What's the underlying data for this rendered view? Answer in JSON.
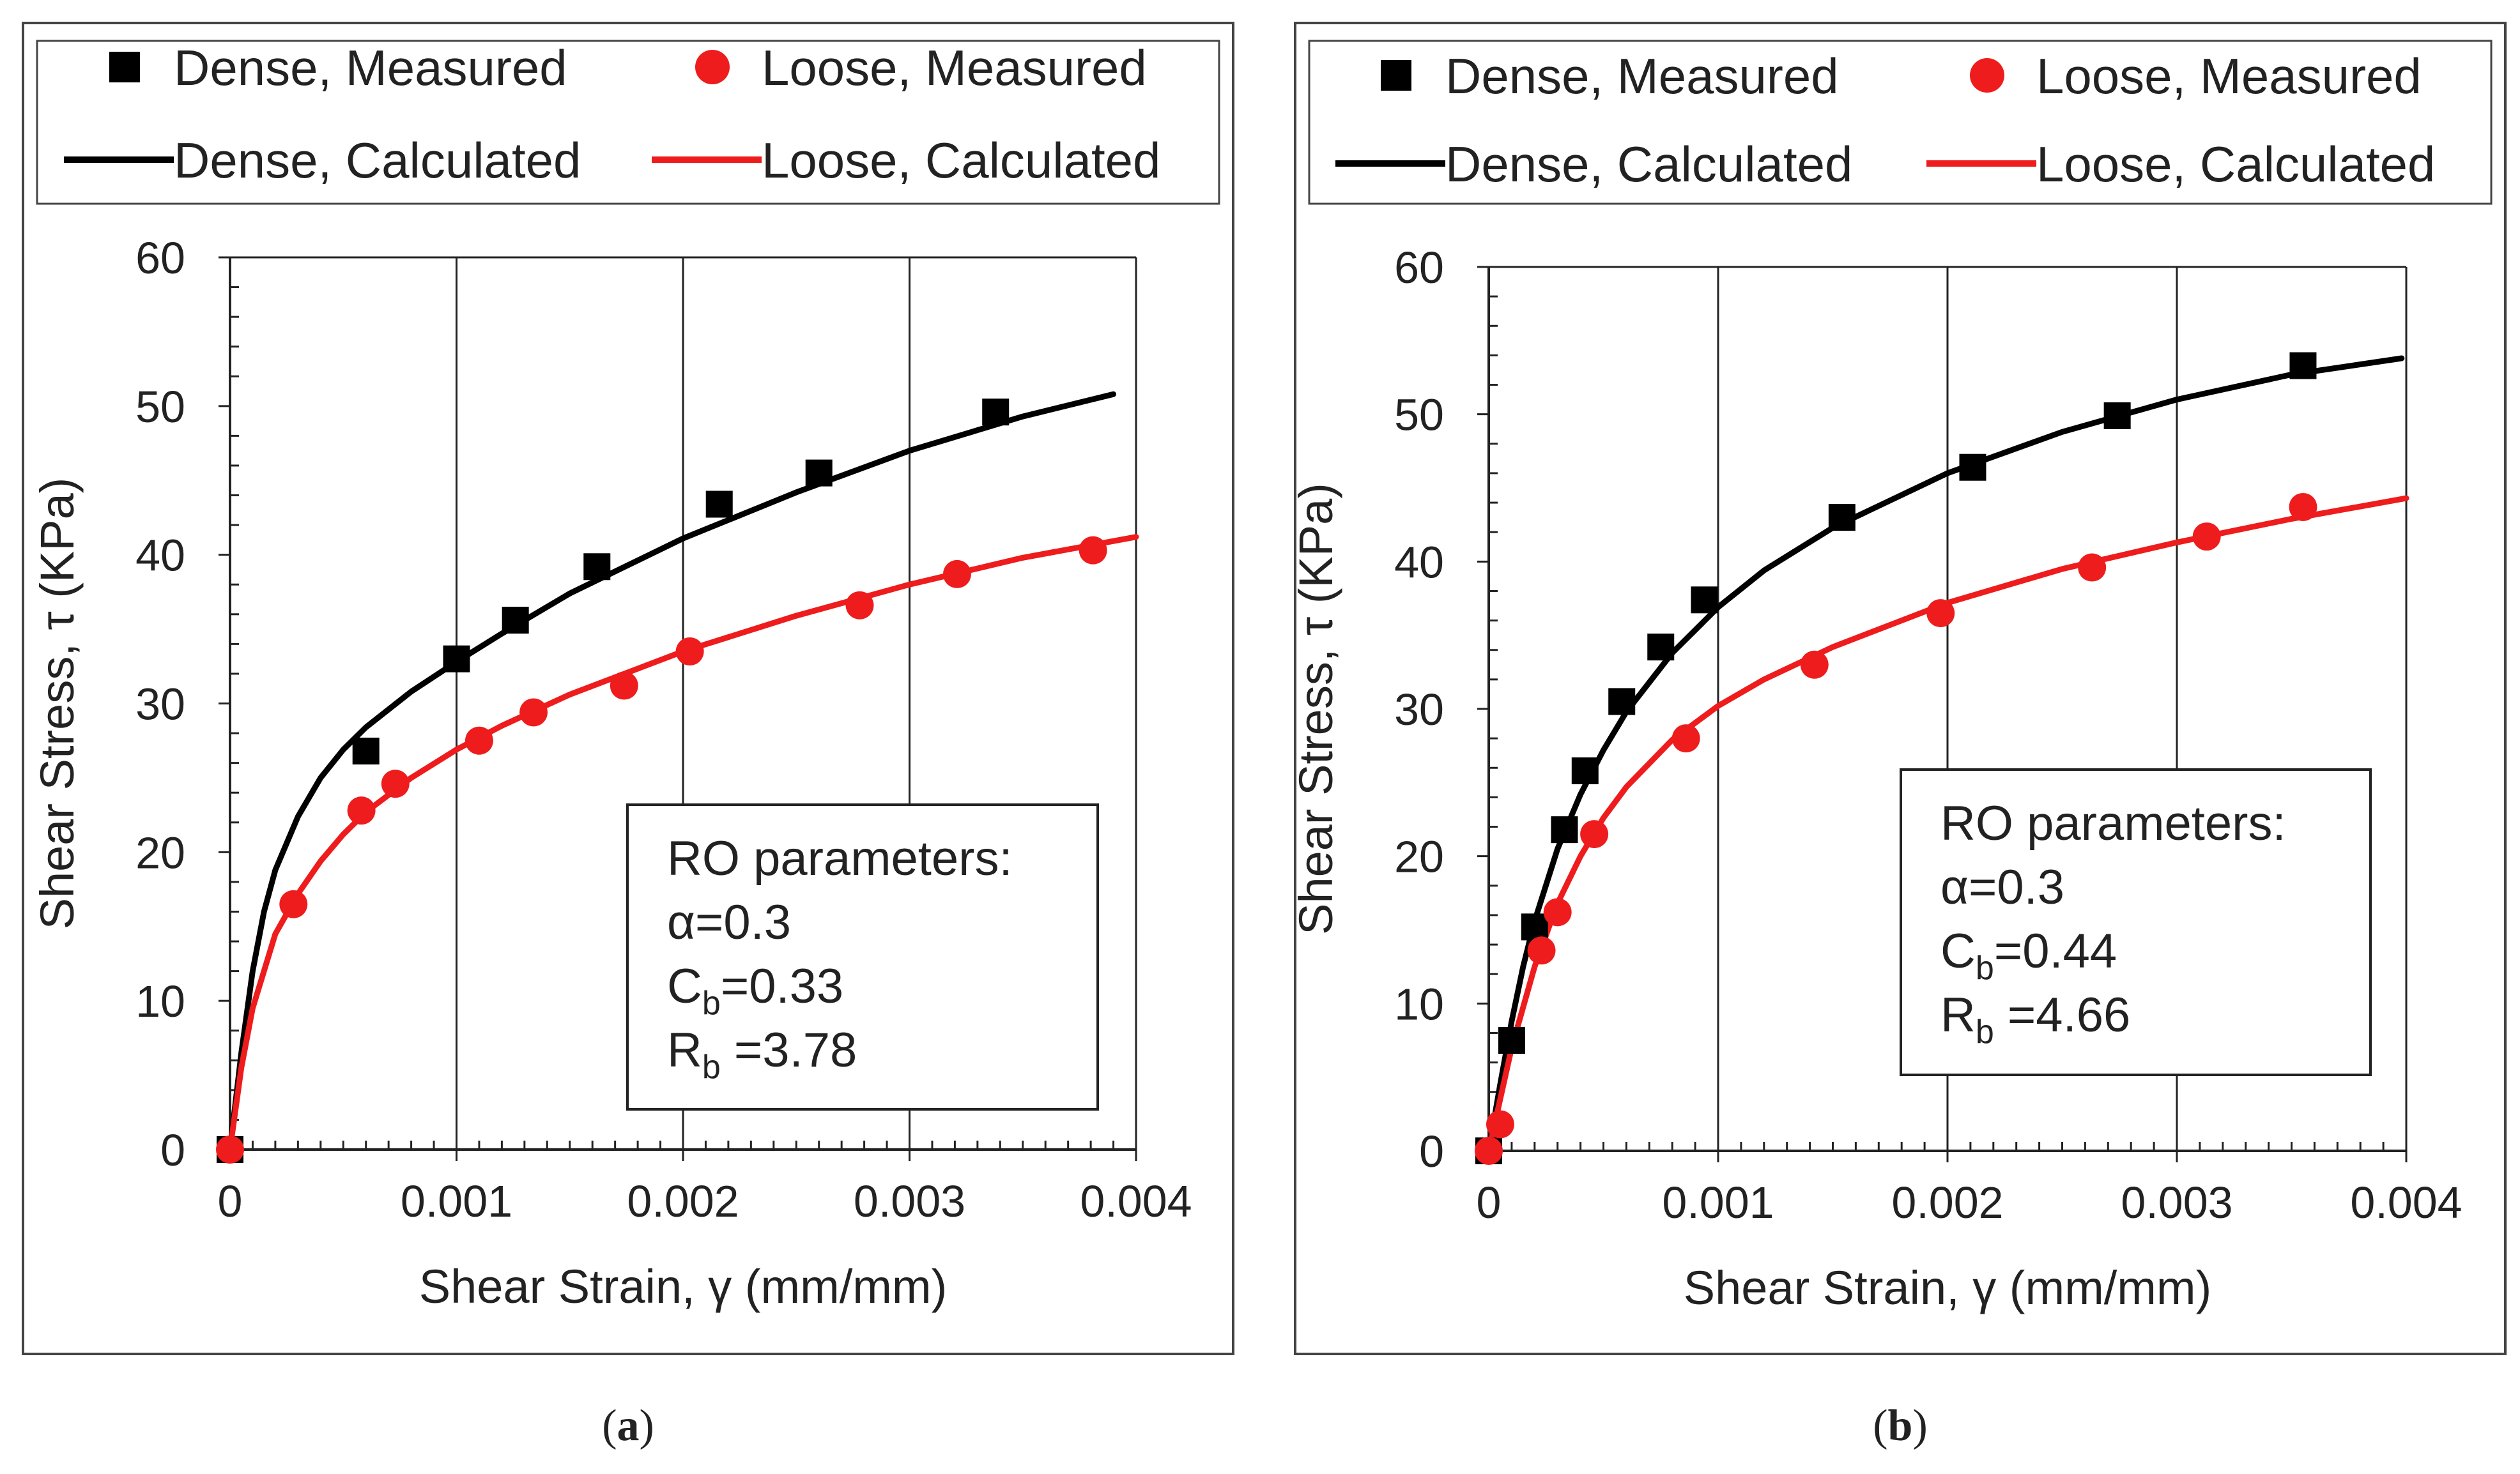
{
  "chart_data": [
    {
      "type": "line",
      "panel_label": "(a)",
      "xlabel": "Shear Strain, γ (mm/mm)",
      "ylabel": "Shear Stress, τ (KPa)",
      "xlim": [
        0,
        0.004
      ],
      "ylim": [
        0,
        60
      ],
      "xticks": [
        "0",
        "0.001",
        "0.002",
        "0.003",
        "0.004"
      ],
      "yticks": [
        "0",
        "10",
        "20",
        "30",
        "40",
        "50",
        "60"
      ],
      "grid": "vertical",
      "legend_position": "top",
      "legend": [
        "Dense, Measured",
        "Loose, Measured",
        "Dense, Calculated",
        "Loose, Calculated"
      ],
      "annotation": {
        "title": "RO parameters:",
        "alpha": "α=0.3",
        "cb_prefix": "C",
        "cb_sub": "b",
        "cb_value": "=0.33",
        "rb_prefix": "R",
        "rb_sub": "b",
        "rb_value": " =3.78"
      },
      "series": [
        {
          "name": "Dense, Measured",
          "kind": "scatter",
          "marker": "square",
          "color": "#000000",
          "x": [
            0,
            0.0006,
            0.001,
            0.00126,
            0.00162,
            0.00216,
            0.0026,
            0.00338
          ],
          "y": [
            0,
            26.8,
            33.0,
            35.6,
            39.2,
            43.4,
            45.5,
            49.6
          ]
        },
        {
          "name": "Loose, Measured",
          "kind": "scatter",
          "marker": "circle",
          "color": "#ee1c1c",
          "x": [
            0,
            0.00028,
            0.00058,
            0.00073,
            0.0011,
            0.00134,
            0.00174,
            0.00203,
            0.00278,
            0.00321,
            0.00381
          ],
          "y": [
            0,
            16.5,
            22.8,
            24.6,
            27.5,
            29.4,
            31.2,
            33.5,
            36.6,
            38.7,
            40.3
          ]
        },
        {
          "name": "Dense, Calculated",
          "kind": "line",
          "color": "#000000",
          "x": [
            0,
            5e-05,
            0.0001,
            0.00015,
            0.0002,
            0.0003,
            0.0004,
            0.0005,
            0.0006,
            0.0008,
            0.001,
            0.0012,
            0.0015,
            0.002,
            0.0025,
            0.003,
            0.0035,
            0.0039
          ],
          "y": [
            0,
            6.5,
            12.0,
            16.0,
            18.8,
            22.4,
            25.0,
            26.9,
            28.4,
            30.8,
            32.8,
            34.7,
            37.4,
            41.1,
            44.2,
            47.0,
            49.3,
            50.8
          ]
        },
        {
          "name": "Loose, Calculated",
          "kind": "line",
          "color": "#ee1c1c",
          "x": [
            0,
            5e-05,
            0.0001,
            0.0002,
            0.0003,
            0.0004,
            0.0005,
            0.0006,
            0.0008,
            0.001,
            0.0012,
            0.0015,
            0.002,
            0.0025,
            0.003,
            0.0035,
            0.004
          ],
          "y": [
            0,
            5.5,
            9.5,
            14.5,
            17.2,
            19.4,
            21.2,
            22.7,
            25.0,
            26.9,
            28.5,
            30.6,
            33.5,
            35.9,
            38.0,
            39.8,
            41.2
          ]
        }
      ]
    },
    {
      "type": "line",
      "panel_label": "(b)",
      "xlabel": "Shear Strain, γ (mm/mm)",
      "ylabel": "Shear Stress, τ (KPa)",
      "xlim": [
        0,
        0.004
      ],
      "ylim": [
        0,
        60
      ],
      "xticks": [
        "0",
        "0.001",
        "0.002",
        "0.003",
        "0.004"
      ],
      "yticks": [
        "0",
        "10",
        "20",
        "30",
        "40",
        "50",
        "60"
      ],
      "grid": "vertical",
      "legend_position": "top",
      "legend": [
        "Dense, Measured",
        "Loose, Measured",
        "Dense, Calculated",
        "Loose, Calculated"
      ],
      "annotation": {
        "title": "RO parameters:",
        "alpha": "α=0.3",
        "cb_prefix": "C",
        "cb_sub": "b",
        "cb_value": "=0.44",
        "rb_prefix": "R",
        "rb_sub": "b",
        "rb_value": " =4.66"
      },
      "series": [
        {
          "name": "Dense, Measured",
          "kind": "scatter",
          "marker": "square",
          "color": "#000000",
          "x": [
            0,
            0.0001,
            0.0002,
            0.00033,
            0.00042,
            0.00058,
            0.00075,
            0.00094,
            0.00154,
            0.00211,
            0.00274,
            0.00355
          ],
          "y": [
            0,
            7.5,
            15.2,
            21.8,
            25.8,
            30.5,
            34.2,
            37.4,
            43.0,
            46.4,
            49.9,
            53.3
          ]
        },
        {
          "name": "Loose, Measured",
          "kind": "scatter",
          "marker": "circle",
          "color": "#ee1c1c",
          "x": [
            0,
            5e-05,
            0.00023,
            0.0003,
            0.00046,
            0.00086,
            0.00142,
            0.00197,
            0.00263,
            0.00313,
            0.00355
          ],
          "y": [
            0,
            1.8,
            13.6,
            16.2,
            21.5,
            28.0,
            33.0,
            36.5,
            39.6,
            41.7,
            43.7
          ]
        },
        {
          "name": "Dense, Calculated",
          "kind": "line",
          "color": "#000000",
          "x": [
            0,
            5e-05,
            0.0001,
            0.00015,
            0.0002,
            0.0003,
            0.0004,
            0.0005,
            0.0006,
            0.0008,
            0.001,
            0.0012,
            0.0015,
            0.002,
            0.0025,
            0.003,
            0.0035,
            0.00398
          ],
          "y": [
            0,
            4.5,
            8.8,
            12.5,
            15.6,
            20.5,
            24.2,
            27.2,
            29.8,
            33.8,
            36.9,
            39.4,
            42.3,
            46.0,
            48.8,
            51.0,
            52.7,
            53.8
          ]
        },
        {
          "name": "Loose, Calculated",
          "kind": "line",
          "color": "#ee1c1c",
          "x": [
            0,
            5e-05,
            0.0001,
            0.0002,
            0.0003,
            0.0004,
            0.0005,
            0.0006,
            0.0008,
            0.001,
            0.0012,
            0.0015,
            0.002,
            0.0025,
            0.003,
            0.0035,
            0.004
          ],
          "y": [
            0,
            3.5,
            7.0,
            12.5,
            16.8,
            20.0,
            22.6,
            24.7,
            27.9,
            30.2,
            32.0,
            34.2,
            37.2,
            39.5,
            41.3,
            42.9,
            44.3
          ]
        }
      ]
    }
  ]
}
